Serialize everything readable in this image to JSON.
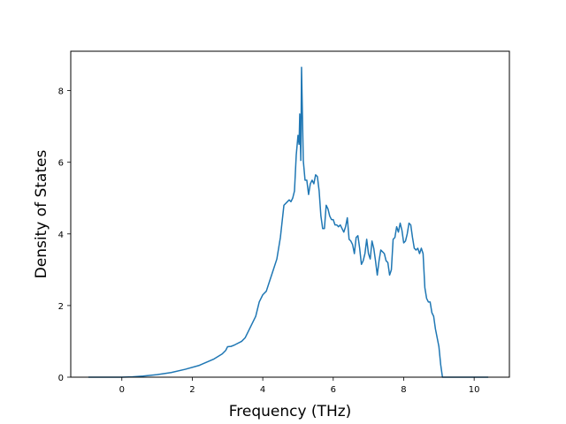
{
  "chart_data": {
    "type": "line",
    "title": "",
    "xlabel": "Frequency (THz)",
    "ylabel": "Density of States",
    "xlim": [
      -1.45,
      11.0
    ],
    "ylim": [
      0,
      9.1
    ],
    "xticks": [
      0,
      2,
      4,
      6,
      8,
      10
    ],
    "yticks": [
      0,
      2,
      4,
      6,
      8
    ],
    "grid": false,
    "line_color": "#1f77b4",
    "series": [
      {
        "x": [
          -0.95,
          -0.5,
          0.0,
          0.3,
          0.6,
          1.0,
          1.4,
          1.8,
          2.2,
          2.6,
          2.85,
          2.95,
          3.0,
          3.1,
          3.2,
          3.4,
          3.5,
          3.6,
          3.7,
          3.8,
          3.9,
          4.0,
          4.1,
          4.2,
          4.3,
          4.4,
          4.5,
          4.6,
          4.7,
          4.75,
          4.8,
          4.85,
          4.9,
          4.95,
          5.0,
          5.03,
          5.05,
          5.08,
          5.1,
          5.15,
          5.2,
          5.25,
          5.3,
          5.35,
          5.4,
          5.45,
          5.5,
          5.55,
          5.6,
          5.65,
          5.7,
          5.75,
          5.8,
          5.85,
          5.9,
          5.95,
          6.0,
          6.05,
          6.1,
          6.15,
          6.2,
          6.3,
          6.35,
          6.4,
          6.45,
          6.5,
          6.55,
          6.6,
          6.65,
          6.7,
          6.75,
          6.8,
          6.85,
          6.9,
          6.95,
          7.0,
          7.05,
          7.1,
          7.15,
          7.2,
          7.25,
          7.3,
          7.35,
          7.4,
          7.45,
          7.5,
          7.55,
          7.6,
          7.65,
          7.7,
          7.75,
          7.8,
          7.85,
          7.9,
          7.95,
          8.0,
          8.05,
          8.1,
          8.15,
          8.2,
          8.25,
          8.3,
          8.35,
          8.4,
          8.45,
          8.5,
          8.55,
          8.6,
          8.65,
          8.7,
          8.75,
          8.8,
          8.85,
          8.9,
          8.95,
          9.0,
          9.05,
          9.1,
          9.15,
          9.2,
          9.25,
          9.3,
          9.35,
          9.4,
          9.45,
          9.5,
          10.0,
          10.4
        ],
        "y": [
          0,
          0,
          0,
          0.01,
          0.03,
          0.07,
          0.13,
          0.22,
          0.33,
          0.5,
          0.65,
          0.75,
          0.85,
          0.86,
          0.9,
          1.0,
          1.1,
          1.3,
          1.5,
          1.7,
          2.1,
          2.3,
          2.4,
          2.7,
          3.0,
          3.3,
          3.9,
          4.8,
          4.9,
          4.95,
          4.9,
          5.0,
          5.2,
          6.2,
          6.75,
          6.5,
          7.35,
          6.05,
          8.65,
          6.05,
          5.5,
          5.5,
          5.1,
          5.4,
          5.5,
          5.4,
          5.65,
          5.6,
          5.2,
          4.5,
          4.15,
          4.15,
          4.8,
          4.7,
          4.5,
          4.4,
          4.4,
          4.25,
          4.25,
          4.2,
          4.25,
          4.05,
          4.2,
          4.45,
          3.85,
          3.8,
          3.7,
          3.45,
          3.9,
          3.95,
          3.6,
          3.15,
          3.25,
          3.45,
          3.85,
          3.45,
          3.3,
          3.8,
          3.6,
          3.25,
          2.85,
          3.25,
          3.55,
          3.5,
          3.45,
          3.25,
          3.2,
          2.85,
          3.0,
          3.85,
          3.9,
          4.2,
          4.05,
          4.3,
          4.1,
          3.75,
          3.8,
          4.0,
          4.3,
          4.25,
          3.9,
          3.6,
          3.55,
          3.6,
          3.45,
          3.6,
          3.45,
          2.5,
          2.2,
          2.1,
          2.1,
          1.8,
          1.7,
          1.35,
          1.1,
          0.85,
          0.35,
          0,
          0,
          0,
          0,
          0,
          0,
          0,
          0,
          0,
          0,
          0
        ]
      }
    ]
  }
}
